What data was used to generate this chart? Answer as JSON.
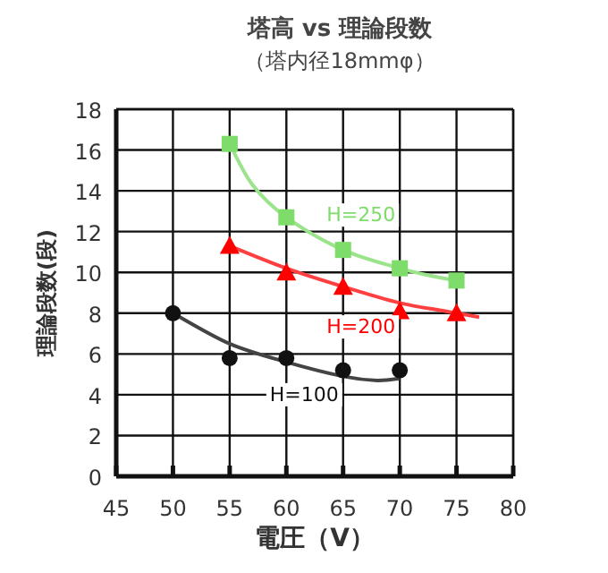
{
  "chart_data": {
    "type": "scatter",
    "title": "塔高 vs 理論段数",
    "subtitle": "（塔内径18mmφ）",
    "xlabel": "電圧（V）",
    "ylabel": "理論段数(段)",
    "xlim": [
      45,
      80
    ],
    "xticks": [
      45,
      50,
      55,
      60,
      65,
      70,
      75,
      80
    ],
    "ylim": [
      0,
      18
    ],
    "yticks": [
      0,
      2,
      4,
      6,
      8,
      10,
      12,
      14,
      16,
      18
    ],
    "grid": true,
    "series": [
      {
        "name": "H=250",
        "marker": "square",
        "color": "#7ddc6a",
        "x": [
          55,
          60,
          65,
          70,
          75
        ],
        "values": [
          16.3,
          12.7,
          11.1,
          10.2,
          9.6
        ]
      },
      {
        "name": "H=200",
        "marker": "triangle",
        "color": "#ff0000",
        "x": [
          55,
          60,
          65,
          70,
          75
        ],
        "values": [
          11.3,
          10.0,
          9.3,
          8.1,
          8.0
        ]
      },
      {
        "name": "H=100",
        "marker": "circle",
        "color": "#111111",
        "x": [
          50,
          55,
          60,
          65,
          70
        ],
        "values": [
          8.0,
          5.8,
          5.8,
          5.2,
          5.2
        ]
      },
      {
        "type": "line",
        "marker": "none",
        "color": "#9be48c",
        "x": [
          55,
          57,
          60,
          65,
          70,
          73,
          75
        ],
        "values": [
          16.3,
          14.3,
          12.7,
          11.1,
          10.2,
          9.8,
          9.6
        ]
      },
      {
        "type": "line",
        "marker": "none",
        "color": "#ff4040",
        "x": [
          55,
          60,
          65,
          70,
          74,
          77
        ],
        "values": [
          11.3,
          10.2,
          9.3,
          8.5,
          8.1,
          7.8
        ]
      },
      {
        "type": "line",
        "marker": "none",
        "color": "#444444",
        "x": [
          50,
          55,
          60,
          65,
          68,
          70
        ],
        "values": [
          8.0,
          6.5,
          5.6,
          4.9,
          4.7,
          4.8
        ]
      }
    ]
  }
}
